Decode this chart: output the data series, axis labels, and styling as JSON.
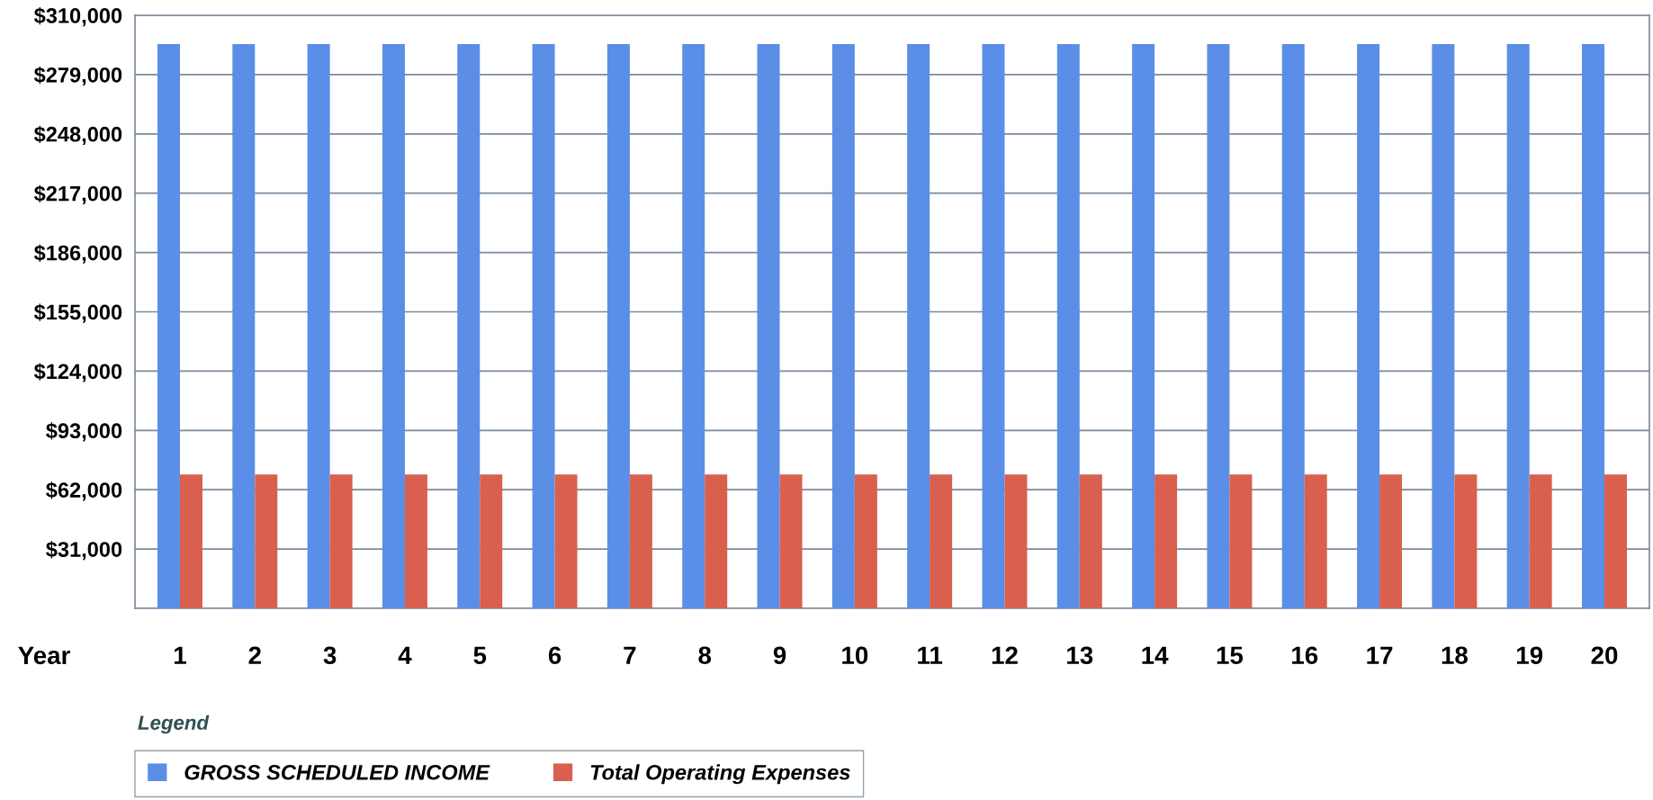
{
  "chart_data": {
    "type": "bar",
    "xlabel": "Year",
    "legend_title": "Legend",
    "categories": [
      "1",
      "2",
      "3",
      "4",
      "5",
      "6",
      "7",
      "8",
      "9",
      "10",
      "11",
      "12",
      "13",
      "14",
      "15",
      "16",
      "17",
      "18",
      "19",
      "20"
    ],
    "series": [
      {
        "name": "GROSS SCHEDULED INCOME",
        "color": "#5b8ee6",
        "values": [
          295000,
          295000,
          295000,
          295000,
          295000,
          295000,
          295000,
          295000,
          295000,
          295000,
          295000,
          295000,
          295000,
          295000,
          295000,
          295000,
          295000,
          295000,
          295000,
          295000
        ]
      },
      {
        "name": "Total Operating Expenses",
        "color": "#d9604f",
        "values": [
          70000,
          70000,
          70000,
          70000,
          70000,
          70000,
          70000,
          70000,
          70000,
          70000,
          70000,
          70000,
          70000,
          70000,
          70000,
          70000,
          70000,
          70000,
          70000,
          70000
        ]
      }
    ],
    "ylim": [
      0,
      310000
    ],
    "yticks": [
      {
        "value": 0,
        "label": null
      },
      {
        "value": 31000,
        "label": "$31,000"
      },
      {
        "value": 62000,
        "label": "$62,000"
      },
      {
        "value": 93000,
        "label": "$93,000"
      },
      {
        "value": 124000,
        "label": "$124,000"
      },
      {
        "value": 155000,
        "label": "$155,000"
      },
      {
        "value": 186000,
        "label": "$186,000"
      },
      {
        "value": 217000,
        "label": "$217,000"
      },
      {
        "value": 248000,
        "label": "$248,000"
      },
      {
        "value": 279000,
        "label": "$279,000"
      },
      {
        "value": 310000,
        "label": "$310,000"
      }
    ],
    "grid": "y",
    "legend": "bottom left"
  }
}
